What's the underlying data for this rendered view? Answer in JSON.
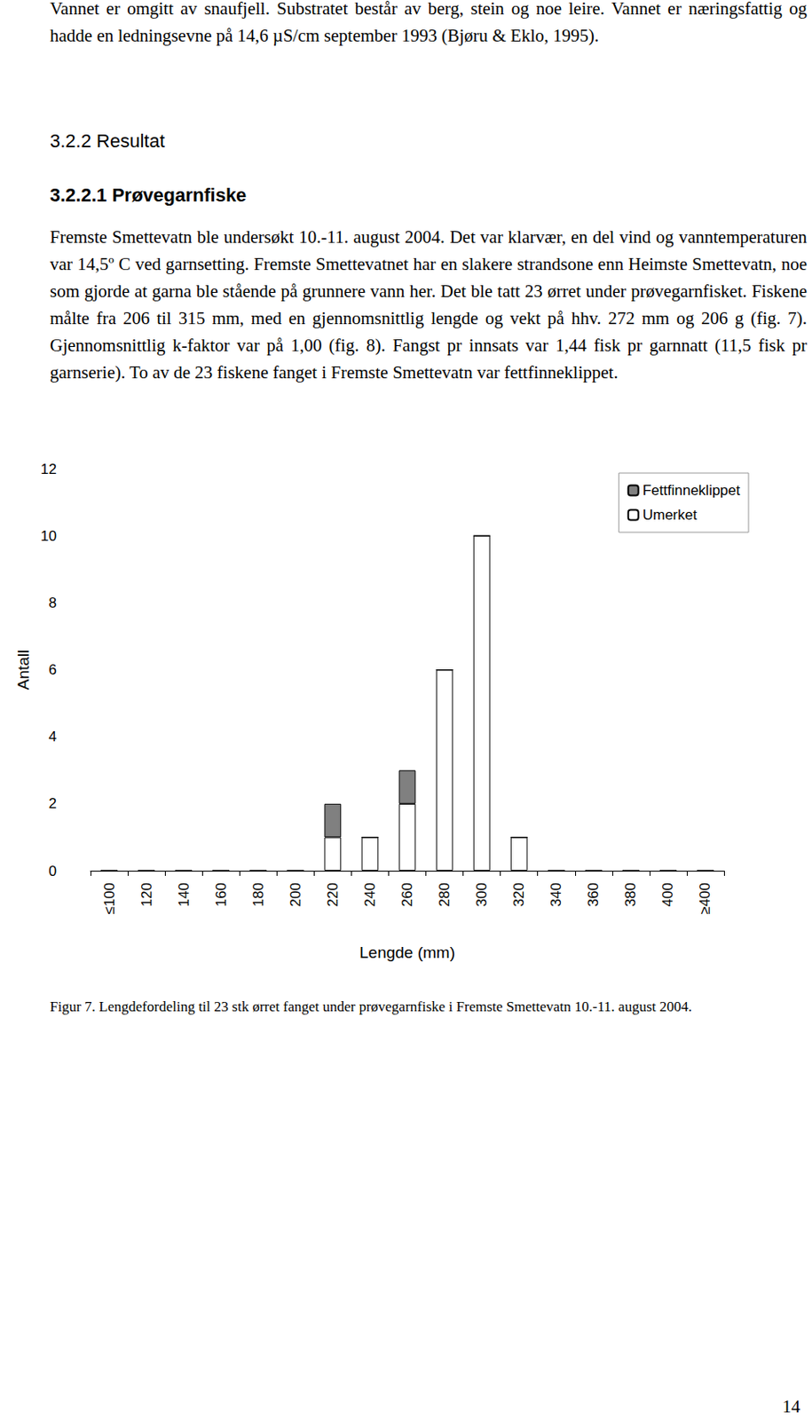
{
  "document": {
    "intro": "Vannet er omgitt av snaufjell. Substratet består av berg, stein og noe leire. Vannet er næringsfattig og hadde en ledningsevne på 14,6 µS/cm september 1993 (Bjøru & Eklo, 1995).",
    "section": "3.2.2 Resultat",
    "subsection": "3.2.2.1 Prøvegarnfiske",
    "paragraph": "Fremste Smettevatn ble undersøkt 10.-11. august 2004. Det var klarvær, en del vind og vanntemperaturen var 14,5º C ved garnsetting. Fremste Smettevatnet har en slakere strandsone enn Heimste Smettevatn, noe som gjorde at garna ble stående på grunnere vann her. Det ble tatt 23 ørret under prøvegarnfisket. Fiskene målte fra 206 til 315 mm, med en gjennomsnittlig lengde og vekt på hhv. 272 mm og 206 g (fig. 7). Gjennomsnittlig k-faktor var på 1,00 (fig. 8). Fangst pr innsats var 1,44 fisk pr garnnatt (11,5 fisk pr garnserie). To av de 23 fiskene fanget i Fremste Smettevatn var fettfinneklippet.",
    "caption": "Figur 7. Lengdefordeling til 23 stk ørret fanget under prøvegarnfiske i Fremste Smettevatn 10.-11. august 2004.",
    "page_number": "14"
  },
  "chart_data": {
    "type": "bar",
    "stacked": true,
    "x_label": "Lengde (mm)",
    "y_label": "Antall",
    "categories": [
      "≤100",
      "120",
      "140",
      "160",
      "180",
      "200",
      "220",
      "240",
      "260",
      "280",
      "300",
      "320",
      "340",
      "360",
      "380",
      "400",
      "≥400"
    ],
    "series": [
      {
        "name": "Umerket",
        "color": "#ffffff",
        "values": [
          0,
          0,
          0,
          0,
          0,
          0,
          1,
          1,
          2,
          6,
          10,
          1,
          0,
          0,
          0,
          0,
          0
        ]
      },
      {
        "name": "Fettfinneklippet",
        "color": "#808080",
        "values": [
          0,
          0,
          0,
          0,
          0,
          0,
          1,
          0,
          1,
          0,
          0,
          0,
          0,
          0,
          0,
          0,
          0
        ]
      }
    ],
    "ylim": [
      0,
      12
    ],
    "yticks": [
      0,
      2,
      4,
      6,
      8,
      10,
      12
    ],
    "grid": false,
    "legend": "top-right"
  }
}
